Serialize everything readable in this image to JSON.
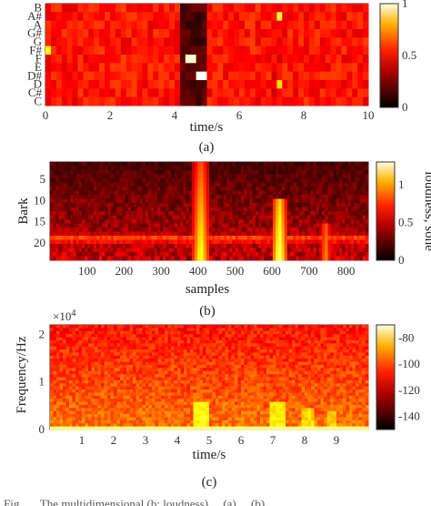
{
  "chart_data": [
    {
      "type": "heatmap",
      "panel_label": "(a)",
      "xlabel": "time/s",
      "ylabel": "",
      "xlim": [
        0,
        10
      ],
      "xticks": [
        "0",
        "2",
        "4",
        "6",
        "8",
        "10"
      ],
      "xtick_values": [
        0,
        2,
        4,
        6,
        8,
        10
      ],
      "yticks": [
        "B",
        "A#",
        "A",
        "G#",
        "G",
        "F#",
        "F",
        "E",
        "D#",
        "D",
        "C#",
        "C"
      ],
      "colorbar": {
        "range": [
          0,
          1
        ],
        "ticks": [
          "0",
          "0.5",
          "1"
        ],
        "tick_values": [
          0,
          0.5,
          1
        ]
      },
      "colormap": "hot",
      "background_level": 0.4,
      "bright_events": [
        {
          "pitch": "F#",
          "t_start": 0.0,
          "t_end": 0.12,
          "level": 0.75
        },
        {
          "pitch": "F",
          "t_start": 4.4,
          "t_end": 4.6,
          "level": 0.95
        },
        {
          "pitch": "D#",
          "t_start": 4.6,
          "t_end": 5.0,
          "level": 1.0
        },
        {
          "pitch": "A#",
          "t_start": 7.1,
          "t_end": 7.35,
          "level": 0.8
        },
        {
          "pitch": "D",
          "t_start": 7.1,
          "t_end": 7.35,
          "level": 0.7
        }
      ],
      "dark_events": [
        {
          "t_start": 4.2,
          "t_end": 5.0,
          "level": 0.05
        },
        {
          "t_start": 7.05,
          "t_end": 7.4,
          "level": 0.3
        }
      ]
    },
    {
      "type": "heatmap",
      "panel_label": "(b)",
      "xlabel": "samples",
      "ylabel": "Bark",
      "xlim": [
        0,
        860
      ],
      "ylim": [
        1,
        24
      ],
      "xticks": [
        "100",
        "200",
        "300",
        "400",
        "500",
        "600",
        "700",
        "800"
      ],
      "xtick_values": [
        100,
        200,
        300,
        400,
        500,
        600,
        700,
        800
      ],
      "yticks": [
        "5",
        "10",
        "15",
        "20"
      ],
      "ytick_values": [
        5,
        10,
        15,
        20
      ],
      "colorbar": {
        "label": "loudness, sone",
        "range": [
          0,
          1.3
        ],
        "ticks": [
          "0",
          "0.5",
          "1"
        ],
        "tick_values": [
          0,
          0.5,
          1
        ]
      },
      "colormap": "hot",
      "background_level": 0.25,
      "band_events": [
        {
          "bark_center": 19,
          "bark_width": 2.2,
          "level": 0.6
        }
      ],
      "bright_events": [
        {
          "sample_start": 385,
          "sample_end": 430,
          "bark_start": 1,
          "bark_end": 24,
          "level": 1.1
        },
        {
          "sample_start": 600,
          "sample_end": 640,
          "bark_start": 10,
          "bark_end": 24,
          "level": 1.2
        },
        {
          "sample_start": 730,
          "sample_end": 760,
          "bark_start": 15,
          "bark_end": 24,
          "level": 0.8
        }
      ]
    },
    {
      "type": "heatmap",
      "panel_label": "(c)",
      "xlabel": "time/s",
      "ylabel": "Frequency/Hz",
      "y_multiplier": "×10^4",
      "y_multiplier_base": "×10",
      "y_multiplier_exp": "4",
      "xlim": [
        0,
        10
      ],
      "ylim": [
        0,
        2.2
      ],
      "xticks": [
        "1",
        "2",
        "3",
        "4",
        "5",
        "6",
        "7",
        "8",
        "9"
      ],
      "xtick_values": [
        1,
        2,
        3,
        4,
        5,
        6,
        7,
        8,
        9
      ],
      "yticks": [
        "0",
        "1",
        "2"
      ],
      "ytick_values": [
        0,
        1,
        2
      ],
      "colorbar": {
        "range": [
          -150,
          -70
        ],
        "ticks": [
          "-80",
          "-100",
          "-120",
          "-140"
        ],
        "tick_values": [
          -80,
          -100,
          -120,
          -140
        ]
      },
      "colormap": "hot",
      "background_level_db": -118,
      "bright_events": [
        {
          "t_start": 4.5,
          "t_end": 5.0,
          "f_max": 0.6,
          "level_db": -90
        },
        {
          "t_start": 6.9,
          "t_end": 7.4,
          "f_max": 0.55,
          "level_db": -92
        },
        {
          "t_start": 7.9,
          "t_end": 8.3,
          "f_max": 0.45,
          "level_db": -95
        },
        {
          "t_start": 8.7,
          "t_end": 9.0,
          "f_max": 0.4,
          "level_db": -96
        }
      ]
    }
  ],
  "caption": "Fig. ....  The multidimensional (b: loudness) ... (a) ... (b) ..."
}
